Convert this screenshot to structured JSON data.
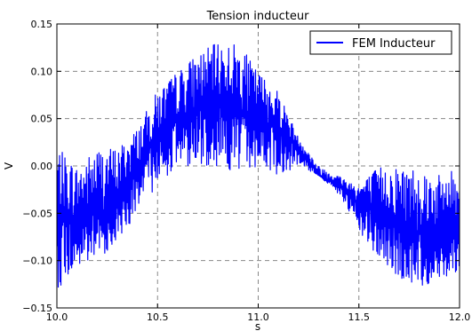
{
  "chart_data": {
    "type": "line",
    "title": "Tension inducteur",
    "xlabel": "s",
    "ylabel": "V",
    "xlim": [
      10.0,
      12.0
    ],
    "ylim": [
      -0.15,
      0.15
    ],
    "xticks": [
      10.0,
      10.5,
      11.0,
      11.5,
      12.0
    ],
    "xtick_labels": [
      "10.0",
      "10.5",
      "11.0",
      "11.5",
      "12.0"
    ],
    "yticks": [
      -0.15,
      -0.1,
      -0.05,
      0.0,
      0.05,
      0.1,
      0.15
    ],
    "ytick_labels": [
      "−0.15",
      "−0.10",
      "−0.05",
      "0.00",
      "0.05",
      "0.10",
      "0.15"
    ],
    "grid": true,
    "legend_position": "top-right",
    "series": [
      {
        "name": "FEM Inducteur",
        "color": "#0000ff",
        "x": [
          10.0,
          10.1,
          10.2,
          10.3,
          10.4,
          10.5,
          10.6,
          10.7,
          10.8,
          10.9,
          11.0,
          11.1,
          11.2,
          11.3,
          11.4,
          11.5,
          11.6,
          11.7,
          11.8,
          11.9,
          12.0
        ],
        "envelope_max": [
          0.02,
          0.0,
          0.02,
          0.02,
          0.04,
          0.08,
          0.1,
          0.12,
          0.13,
          0.13,
          0.1,
          0.08,
          0.03,
          0.0,
          -0.01,
          -0.02,
          0.0,
          0.0,
          0.0,
          -0.01,
          0.0
        ],
        "envelope_min": [
          -0.13,
          -0.11,
          -0.1,
          -0.08,
          -0.05,
          -0.02,
          0.0,
          0.0,
          0.0,
          -0.01,
          0.0,
          -0.01,
          0.0,
          -0.01,
          -0.03,
          -0.07,
          -0.1,
          -0.12,
          -0.13,
          -0.12,
          -0.11
        ],
        "values": [
          -0.05,
          -0.06,
          -0.05,
          -0.04,
          0.0,
          0.03,
          0.05,
          0.06,
          0.07,
          0.06,
          0.05,
          0.04,
          0.02,
          -0.01,
          -0.02,
          -0.04,
          -0.05,
          -0.06,
          -0.07,
          -0.07,
          -0.06
        ]
      }
    ]
  }
}
